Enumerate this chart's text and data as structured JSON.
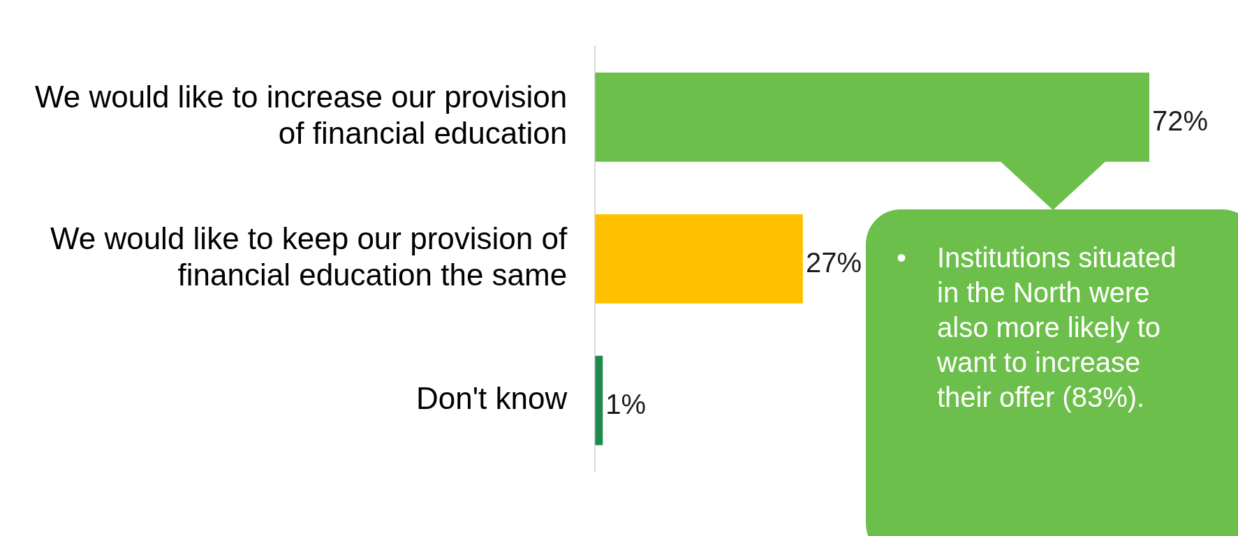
{
  "chart_data": {
    "type": "bar",
    "orientation": "horizontal",
    "categories": [
      "We would like to increase our provision of financial education",
      "We would like to keep our provision of financial education the same",
      "Don't know"
    ],
    "values": [
      72,
      27,
      1
    ],
    "colors": [
      "#6cbf4b",
      "#ffc000",
      "#1e8b4c"
    ],
    "value_labels": [
      "72%",
      "27%",
      "1%"
    ],
    "annotations": [
      "•\tInstitutions situated in the North were also more likely to want to increase their offer (83%)."
    ],
    "legend": false,
    "tick_labels": "y"
  }
}
